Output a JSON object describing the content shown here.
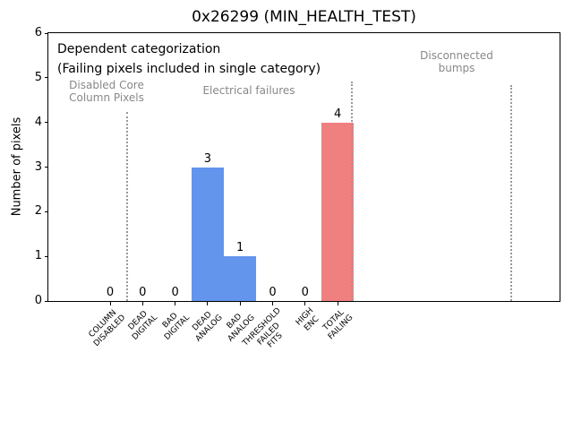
{
  "chart_data": {
    "type": "bar",
    "title": "0x26299 (MIN_HEALTH_TEST)",
    "xlabel": "",
    "ylabel": "Number of pixels",
    "ylim": [
      0,
      6
    ],
    "yticks": [
      0,
      1,
      2,
      3,
      4,
      5,
      6
    ],
    "grid": false,
    "legend": false,
    "categories": [
      "COLUMN\nDISABLED",
      "DEAD\nDIGITAL",
      "BAD\nDIGITAL",
      "DEAD\nANALOG",
      "BAD\nANALOG",
      "THRESHOLD\nFAILED\nFITS",
      "HIGH\nENC",
      "TOTAL\nFAILING"
    ],
    "values": [
      0,
      0,
      0,
      3,
      1,
      0,
      0,
      4
    ],
    "bar_value_labels": [
      "0",
      "0",
      "0",
      "3",
      "1",
      "0",
      "0",
      "4"
    ],
    "bar_colors": [
      "#6495ed",
      "#6495ed",
      "#6495ed",
      "#6495ed",
      "#6495ed",
      "#6495ed",
      "#6495ed",
      "#f08080"
    ],
    "annotations": {
      "dependent_note": "Dependent categorization\n(Failing pixels included in single category)",
      "group_labels": [
        {
          "id": "disabled-core",
          "text": "Disabled Core\nColumn Pixels"
        },
        {
          "id": "electrical",
          "text": "Electrical failures"
        },
        {
          "id": "disconnected",
          "text": "Disconnected\nbumps"
        }
      ]
    },
    "colors": {
      "bar_blue": "#6495ed",
      "bar_red": "#f08080",
      "annotation_black": "#000000",
      "group_label_gray": "#888888",
      "separator_gray": "#999999",
      "axis_black": "#000000",
      "background": "#ffffff"
    }
  }
}
